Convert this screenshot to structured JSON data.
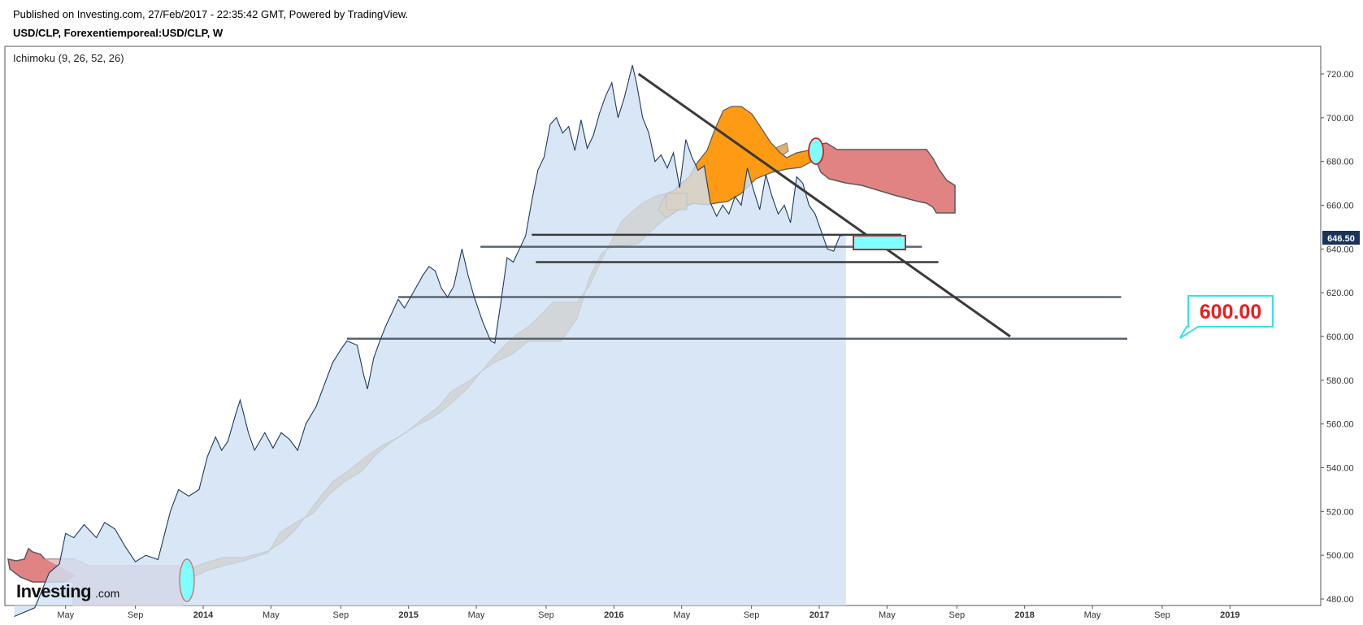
{
  "header": {
    "published": "Published on Investing.com, 27/Feb/2017 - 22:35:42 GMT, Powered by TradingView.",
    "symbol": "USD/CLP, Forexentiemporeal:USD/CLP, W"
  },
  "indicator_label": "Ichimoku (9, 26, 52, 26)",
  "logo": {
    "main": "Investing",
    "suffix": ".com"
  },
  "last_price": "646.50",
  "target_callout": "600.00",
  "colors": {
    "price_line": "#1e3a5f",
    "price_area": "#cfe0f3",
    "cloud_bull": "#e0b071",
    "cloud_bear": "#e28383",
    "cloud_highlight": "#ff9a14",
    "cyan_marker": "#7fffff",
    "trendline": "#3a3a3a",
    "callout_border": "#33e4e8",
    "callout_text": "#ee1c1c"
  },
  "chart_data": {
    "type": "line",
    "ylim": [
      476,
      728
    ],
    "ytick_labels": [
      "720.00",
      "700.00",
      "680.00",
      "660.00",
      "640.00",
      "620.00",
      "600.00",
      "580.00",
      "560.00",
      "540.00",
      "520.00",
      "500.00",
      "480.00"
    ],
    "yticks": [
      720,
      700,
      680,
      660,
      640,
      620,
      600,
      580,
      560,
      540,
      520,
      500,
      480
    ],
    "xtick_labels": [
      "May",
      "Sep",
      "2014",
      "May",
      "Sep",
      "2015",
      "May",
      "Sep",
      "2016",
      "May",
      "Sep",
      "2017",
      "May",
      "Sep",
      "2018",
      "May",
      "Sep",
      "2019"
    ],
    "xticks": [
      2013.33,
      2013.67,
      2014.0,
      2014.33,
      2014.67,
      2015.0,
      2015.33,
      2015.67,
      2016.0,
      2016.33,
      2016.67,
      2017.0,
      2017.33,
      2017.67,
      2018.0,
      2018.33,
      2018.67,
      2019.0
    ],
    "bold_year_ticks": [
      "2014",
      "2015",
      "2016",
      "2017",
      "2018",
      "2019"
    ],
    "series": [
      {
        "values": [
          [
            2013.08,
            472
          ],
          [
            2013.18,
            476
          ],
          [
            2013.25,
            492
          ],
          [
            2013.3,
            496
          ],
          [
            2013.33,
            510
          ],
          [
            2013.37,
            508
          ],
          [
            2013.42,
            514
          ],
          [
            2013.48,
            508
          ],
          [
            2013.52,
            515
          ],
          [
            2013.57,
            512
          ],
          [
            2013.62,
            504
          ],
          [
            2013.67,
            497
          ],
          [
            2013.72,
            500
          ],
          [
            2013.78,
            498
          ],
          [
            2013.84,
            520
          ],
          [
            2013.88,
            530
          ],
          [
            2013.93,
            527
          ],
          [
            2013.98,
            530
          ],
          [
            2014.02,
            545
          ],
          [
            2014.06,
            554
          ],
          [
            2014.09,
            548
          ],
          [
            2014.12,
            552
          ],
          [
            2014.16,
            565
          ],
          [
            2014.18,
            571
          ],
          [
            2014.22,
            556
          ],
          [
            2014.25,
            548
          ],
          [
            2014.3,
            556
          ],
          [
            2014.34,
            549
          ],
          [
            2014.38,
            556
          ],
          [
            2014.42,
            553
          ],
          [
            2014.46,
            548
          ],
          [
            2014.5,
            560
          ],
          [
            2014.55,
            568
          ],
          [
            2014.59,
            578
          ],
          [
            2014.63,
            588
          ],
          [
            2014.67,
            594
          ],
          [
            2014.7,
            598
          ],
          [
            2014.75,
            596
          ],
          [
            2014.78,
            583
          ],
          [
            2014.8,
            576
          ],
          [
            2014.83,
            590
          ],
          [
            2014.86,
            598
          ],
          [
            2014.89,
            605
          ],
          [
            2014.92,
            611
          ],
          [
            2014.95,
            617
          ],
          [
            2014.98,
            613
          ],
          [
            2015.01,
            618
          ],
          [
            2015.04,
            623
          ],
          [
            2015.07,
            628
          ],
          [
            2015.1,
            632
          ],
          [
            2015.13,
            630
          ],
          [
            2015.16,
            622
          ],
          [
            2015.19,
            618
          ],
          [
            2015.22,
            623
          ],
          [
            2015.26,
            640
          ],
          [
            2015.29,
            628
          ],
          [
            2015.32,
            618
          ],
          [
            2015.36,
            607
          ],
          [
            2015.4,
            598
          ],
          [
            2015.42,
            597
          ],
          [
            2015.45,
            616
          ],
          [
            2015.48,
            636
          ],
          [
            2015.51,
            634
          ],
          [
            2015.54,
            640
          ],
          [
            2015.57,
            646
          ],
          [
            2015.6,
            662
          ],
          [
            2015.63,
            676
          ],
          [
            2015.66,
            682
          ],
          [
            2015.69,
            697
          ],
          [
            2015.72,
            700
          ],
          [
            2015.75,
            693
          ],
          [
            2015.78,
            696
          ],
          [
            2015.81,
            685
          ],
          [
            2015.84,
            699
          ],
          [
            2015.87,
            686
          ],
          [
            2015.9,
            692
          ],
          [
            2015.93,
            702
          ],
          [
            2015.96,
            710
          ],
          [
            2015.99,
            716
          ],
          [
            2016.02,
            700
          ],
          [
            2016.05,
            709
          ],
          [
            2016.09,
            724
          ],
          [
            2016.11,
            716
          ],
          [
            2016.14,
            700
          ],
          [
            2016.17,
            693
          ],
          [
            2016.2,
            680
          ],
          [
            2016.23,
            683
          ],
          [
            2016.26,
            677
          ],
          [
            2016.29,
            684
          ],
          [
            2016.32,
            668
          ],
          [
            2016.35,
            690
          ],
          [
            2016.38,
            682
          ],
          [
            2016.41,
            676
          ],
          [
            2016.44,
            678
          ],
          [
            2016.47,
            661
          ],
          [
            2016.5,
            655
          ],
          [
            2016.53,
            660
          ],
          [
            2016.56,
            656
          ],
          [
            2016.59,
            664
          ],
          [
            2016.62,
            660
          ],
          [
            2016.65,
            677
          ],
          [
            2016.68,
            667
          ],
          [
            2016.71,
            658
          ],
          [
            2016.74,
            674
          ],
          [
            2016.77,
            664
          ],
          [
            2016.8,
            656
          ],
          [
            2016.83,
            660
          ],
          [
            2016.86,
            652
          ],
          [
            2016.89,
            673
          ],
          [
            2016.92,
            670
          ],
          [
            2016.95,
            660
          ],
          [
            2016.98,
            656
          ],
          [
            2017.01,
            648
          ],
          [
            2017.04,
            640
          ],
          [
            2017.07,
            639
          ],
          [
            2017.1,
            646
          ],
          [
            2017.13,
            646.5
          ]
        ]
      }
    ],
    "annotations": {
      "horizontal_levels": [
        646.5,
        641,
        634,
        618,
        599
      ],
      "trendline": [
        [
          2016.12,
          720
        ],
        [
          2017.93,
          600
        ]
      ],
      "target_price": 600.0
    }
  }
}
